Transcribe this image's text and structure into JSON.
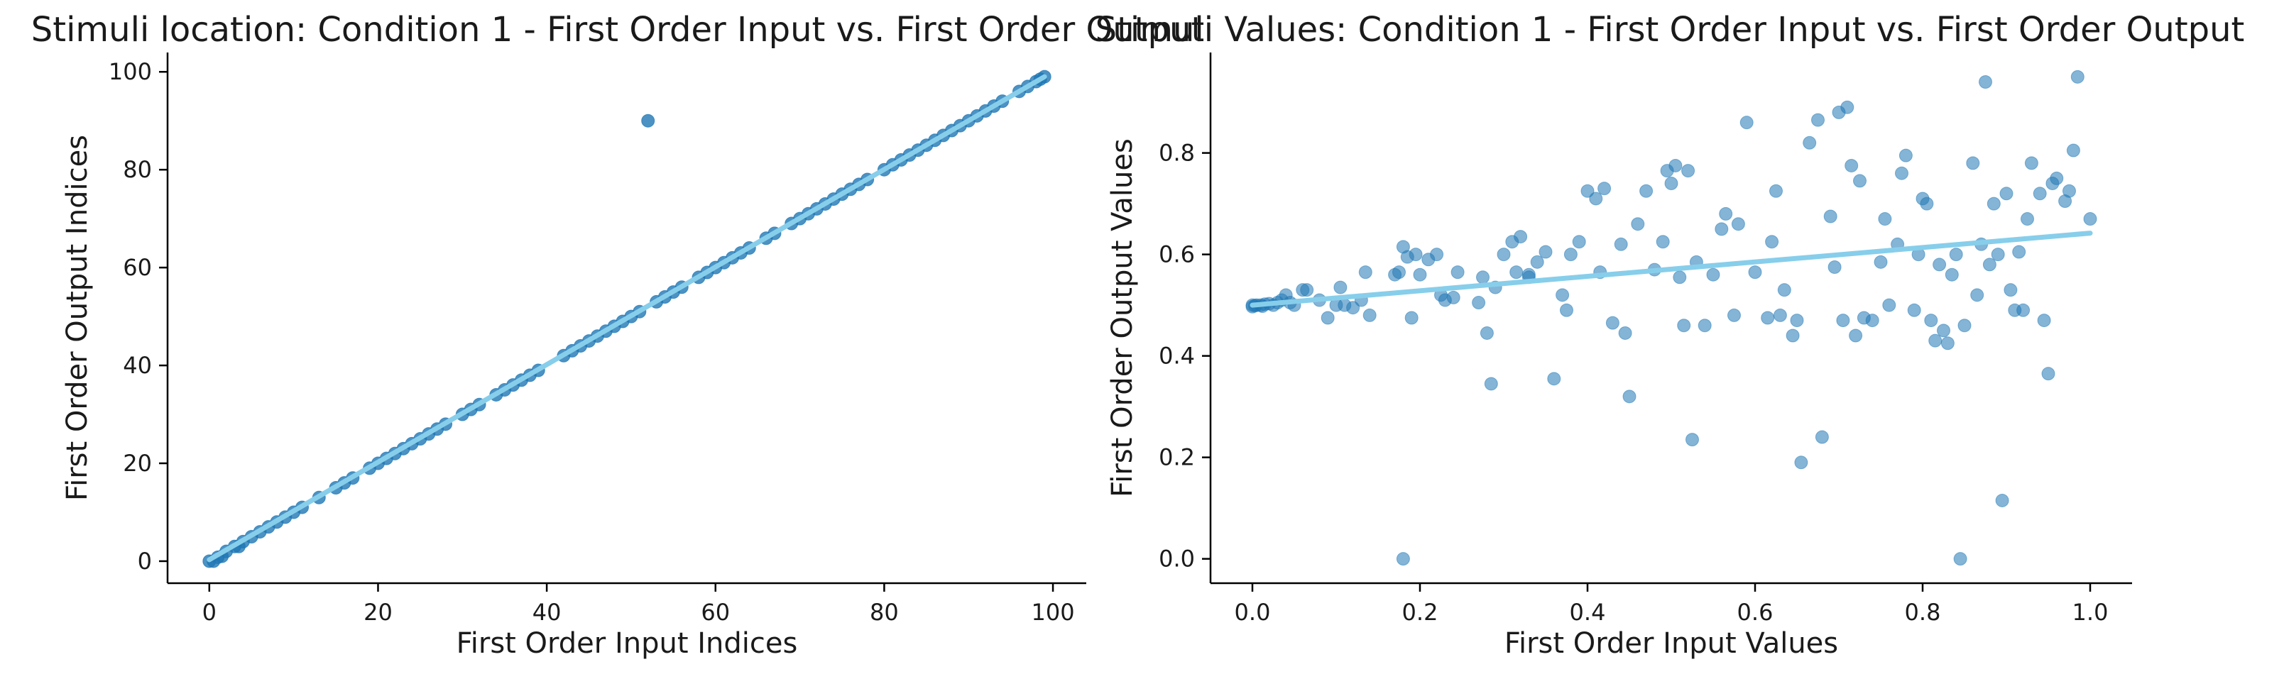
{
  "colors": {
    "points": "#1f77b4",
    "fit_line": "#87ceeb"
  },
  "chart_data": [
    {
      "type": "scatter",
      "title": "Stimuli location: Condition 1 - First Order Input vs. First Order Output",
      "xlabel": "First Order Input Indices",
      "ylabel": "First Order Output Indices",
      "xlim": [
        -4.95,
        103.95
      ],
      "ylim": [
        -4.5,
        103.95
      ],
      "xticks": [
        0,
        20,
        40,
        60,
        80,
        100
      ],
      "yticks": [
        0,
        20,
        40,
        60,
        80,
        100
      ],
      "grid": false,
      "point_alpha": 0.8,
      "fit_line": {
        "x": [
          0,
          99
        ],
        "y": [
          0.3,
          99
        ]
      },
      "points": [
        [
          0,
          0
        ],
        [
          0.5,
          0
        ],
        [
          1,
          0.8
        ],
        [
          1.5,
          1
        ],
        [
          2,
          2
        ],
        [
          3,
          3
        ],
        [
          3.5,
          3
        ],
        [
          4,
          4
        ],
        [
          5,
          5
        ],
        [
          6,
          6
        ],
        [
          7,
          7
        ],
        [
          8,
          8
        ],
        [
          9,
          9
        ],
        [
          10,
          10
        ],
        [
          11,
          11
        ],
        [
          13,
          13
        ],
        [
          15,
          15
        ],
        [
          16,
          16
        ],
        [
          17,
          17
        ],
        [
          19,
          19
        ],
        [
          20,
          20
        ],
        [
          21,
          21
        ],
        [
          22,
          22
        ],
        [
          23,
          23
        ],
        [
          24,
          24
        ],
        [
          25,
          25
        ],
        [
          26,
          26
        ],
        [
          27,
          27
        ],
        [
          28,
          28
        ],
        [
          30,
          30
        ],
        [
          31,
          31
        ],
        [
          32,
          32
        ],
        [
          34,
          34
        ],
        [
          35,
          35
        ],
        [
          36,
          36
        ],
        [
          37,
          37
        ],
        [
          38,
          38
        ],
        [
          39,
          39
        ],
        [
          42,
          42
        ],
        [
          43,
          43
        ],
        [
          44,
          44
        ],
        [
          45,
          45
        ],
        [
          46,
          46
        ],
        [
          47,
          47
        ],
        [
          48,
          48
        ],
        [
          49,
          49
        ],
        [
          50,
          50
        ],
        [
          51,
          51
        ],
        [
          53,
          53
        ],
        [
          54,
          54
        ],
        [
          55,
          55
        ],
        [
          56,
          56
        ],
        [
          58,
          58
        ],
        [
          59,
          59
        ],
        [
          60,
          60
        ],
        [
          61,
          61
        ],
        [
          62,
          62
        ],
        [
          63,
          63
        ],
        [
          64,
          64
        ],
        [
          66,
          66
        ],
        [
          67,
          67
        ],
        [
          69,
          69
        ],
        [
          70,
          70
        ],
        [
          71,
          71
        ],
        [
          72,
          72
        ],
        [
          73,
          73
        ],
        [
          74,
          74
        ],
        [
          75,
          75
        ],
        [
          76,
          76
        ],
        [
          77,
          77
        ],
        [
          78,
          78
        ],
        [
          80,
          80
        ],
        [
          81,
          81
        ],
        [
          82,
          82
        ],
        [
          83,
          83
        ],
        [
          84,
          84
        ],
        [
          85,
          85
        ],
        [
          86,
          86
        ],
        [
          87,
          87
        ],
        [
          88,
          88
        ],
        [
          89,
          89
        ],
        [
          90,
          90
        ],
        [
          91,
          91
        ],
        [
          92,
          92
        ],
        [
          93,
          93
        ],
        [
          94,
          94
        ],
        [
          96,
          96
        ],
        [
          97,
          97
        ],
        [
          98,
          98
        ],
        [
          98.5,
          98.5
        ],
        [
          99,
          99
        ],
        [
          52,
          90
        ]
      ]
    },
    {
      "type": "scatter",
      "title": "Stimuli Values: Condition 1 - First Order Input vs. First Order Output",
      "xlabel": "First Order Input Values",
      "ylabel": "First Order Output Values",
      "xlim": [
        -0.05,
        1.05
      ],
      "ylim": [
        -0.048,
        0.998
      ],
      "xticks": [
        0.0,
        0.2,
        0.4,
        0.6,
        0.8,
        1.0
      ],
      "yticks": [
        0.0,
        0.2,
        0.4,
        0.6,
        0.8
      ],
      "tick_decimals": 1,
      "grid": false,
      "point_alpha": 0.55,
      "fit_line": {
        "x": [
          0,
          1.0
        ],
        "y": [
          0.5,
          0.642
        ]
      },
      "points": [
        [
          0,
          0.5
        ],
        [
          0,
          0.497
        ],
        [
          0.003,
          0.499
        ],
        [
          0.005,
          0.5
        ],
        [
          0.01,
          0.5
        ],
        [
          0.012,
          0.498
        ],
        [
          0.015,
          0.502
        ],
        [
          0.02,
          0.503
        ],
        [
          0.025,
          0.5
        ],
        [
          0.03,
          0.505
        ],
        [
          0.035,
          0.51
        ],
        [
          0.04,
          0.52
        ],
        [
          0.045,
          0.505
        ],
        [
          0.05,
          0.5
        ],
        [
          0.06,
          0.53
        ],
        [
          0.065,
          0.53
        ],
        [
          0.08,
          0.51
        ],
        [
          0.09,
          0.475
        ],
        [
          0.1,
          0.5
        ],
        [
          0.105,
          0.535
        ],
        [
          0.11,
          0.5
        ],
        [
          0.12,
          0.495
        ],
        [
          0.13,
          0.51
        ],
        [
          0.135,
          0.565
        ],
        [
          0.14,
          0.48
        ],
        [
          0.17,
          0.56
        ],
        [
          0.175,
          0.565
        ],
        [
          0.18,
          0.615
        ],
        [
          0.185,
          0.595
        ],
        [
          0.19,
          0.475
        ],
        [
          0.195,
          0.6
        ],
        [
          0.2,
          0.56
        ],
        [
          0.21,
          0.59
        ],
        [
          0.22,
          0.6
        ],
        [
          0.225,
          0.52
        ],
        [
          0.23,
          0.51
        ],
        [
          0.24,
          0.515
        ],
        [
          0.245,
          0.565
        ],
        [
          0.27,
          0.505
        ],
        [
          0.275,
          0.555
        ],
        [
          0.28,
          0.445
        ],
        [
          0.285,
          0.345
        ],
        [
          0.29,
          0.535
        ],
        [
          0.3,
          0.6
        ],
        [
          0.31,
          0.625
        ],
        [
          0.315,
          0.565
        ],
        [
          0.32,
          0.635
        ],
        [
          0.33,
          0.56
        ],
        [
          0.34,
          0.585
        ],
        [
          0.35,
          0.605
        ],
        [
          0.36,
          0.355
        ],
        [
          0.37,
          0.52
        ],
        [
          0.375,
          0.49
        ],
        [
          0.38,
          0.6
        ],
        [
          0.39,
          0.625
        ],
        [
          0.4,
          0.725
        ],
        [
          0.41,
          0.71
        ],
        [
          0.415,
          0.565
        ],
        [
          0.42,
          0.73
        ],
        [
          0.43,
          0.465
        ],
        [
          0.44,
          0.62
        ],
        [
          0.445,
          0.445
        ],
        [
          0.45,
          0.32
        ],
        [
          0.46,
          0.66
        ],
        [
          0.47,
          0.725
        ],
        [
          0.48,
          0.57
        ],
        [
          0.49,
          0.625
        ],
        [
          0.495,
          0.765
        ],
        [
          0.5,
          0.74
        ],
        [
          0.505,
          0.775
        ],
        [
          0.51,
          0.555
        ],
        [
          0.515,
          0.46
        ],
        [
          0.52,
          0.765
        ],
        [
          0.525,
          0.235
        ],
        [
          0.53,
          0.585
        ],
        [
          0.54,
          0.46
        ],
        [
          0.55,
          0.56
        ],
        [
          0.56,
          0.65
        ],
        [
          0.565,
          0.68
        ],
        [
          0.575,
          0.48
        ],
        [
          0.58,
          0.66
        ],
        [
          0.59,
          0.86
        ],
        [
          0.6,
          0.565
        ],
        [
          0.615,
          0.475
        ],
        [
          0.62,
          0.625
        ],
        [
          0.625,
          0.725
        ],
        [
          0.63,
          0.48
        ],
        [
          0.635,
          0.53
        ],
        [
          0.645,
          0.44
        ],
        [
          0.65,
          0.47
        ],
        [
          0.655,
          0.19
        ],
        [
          0.665,
          0.82
        ],
        [
          0.675,
          0.865
        ],
        [
          0.68,
          0.24
        ],
        [
          0.69,
          0.675
        ],
        [
          0.695,
          0.575
        ],
        [
          0.7,
          0.88
        ],
        [
          0.705,
          0.47
        ],
        [
          0.71,
          0.89
        ],
        [
          0.715,
          0.775
        ],
        [
          0.72,
          0.44
        ],
        [
          0.725,
          0.745
        ],
        [
          0.73,
          0.475
        ],
        [
          0.74,
          0.47
        ],
        [
          0.75,
          0.585
        ],
        [
          0.755,
          0.67
        ],
        [
          0.76,
          0.5
        ],
        [
          0.77,
          0.62
        ],
        [
          0.775,
          0.76
        ],
        [
          0.78,
          0.795
        ],
        [
          0.79,
          0.49
        ],
        [
          0.795,
          0.6
        ],
        [
          0.8,
          0.71
        ],
        [
          0.805,
          0.7
        ],
        [
          0.81,
          0.47
        ],
        [
          0.815,
          0.43
        ],
        [
          0.82,
          0.58
        ],
        [
          0.825,
          0.45
        ],
        [
          0.83,
          0.425
        ],
        [
          0.835,
          0.56
        ],
        [
          0.84,
          0.6
        ],
        [
          0.845,
          0.0
        ],
        [
          0.85,
          0.46
        ],
        [
          0.86,
          0.78
        ],
        [
          0.865,
          0.52
        ],
        [
          0.87,
          0.62
        ],
        [
          0.875,
          0.94
        ],
        [
          0.88,
          0.58
        ],
        [
          0.885,
          0.7
        ],
        [
          0.89,
          0.6
        ],
        [
          0.895,
          0.115
        ],
        [
          0.9,
          0.72
        ],
        [
          0.905,
          0.53
        ],
        [
          0.91,
          0.49
        ],
        [
          0.915,
          0.605
        ],
        [
          0.92,
          0.49
        ],
        [
          0.925,
          0.67
        ],
        [
          0.93,
          0.78
        ],
        [
          0.94,
          0.72
        ],
        [
          0.945,
          0.47
        ],
        [
          0.95,
          0.365
        ],
        [
          0.955,
          0.74
        ],
        [
          0.96,
          0.75
        ],
        [
          0.97,
          0.705
        ],
        [
          0.975,
          0.725
        ],
        [
          0.98,
          0.805
        ],
        [
          0.985,
          0.95
        ],
        [
          1.0,
          0.67
        ],
        [
          0.18,
          0.0
        ],
        [
          0.33,
          0.555
        ]
      ]
    }
  ]
}
